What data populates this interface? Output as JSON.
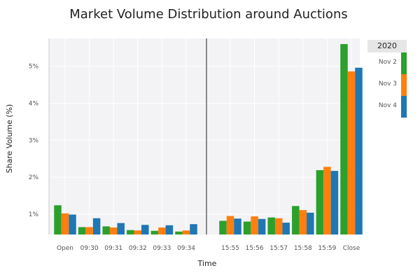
{
  "chart_data": {
    "type": "bar",
    "title": "Market Volume Distribution around Auctions",
    "xlabel": "Time",
    "ylabel": "Share Volume (%)",
    "categories": [
      "Open",
      "09:30",
      "09:31",
      "09:32",
      "09:33",
      "09:34",
      "15:55",
      "15:56",
      "15:57",
      "15:58",
      "15:59",
      "Close"
    ],
    "break_after_index": 5,
    "yticks": [
      "1%",
      "2%",
      "3%",
      "4%",
      "5%"
    ],
    "ylim": [
      0.45,
      5.75
    ],
    "grid": true,
    "legend_placement": "right",
    "legend_title": "2020",
    "series": [
      {
        "name": "Nov 2",
        "color": "#2ca02c",
        "values": [
          1.24,
          0.65,
          0.67,
          0.57,
          0.55,
          0.53,
          0.82,
          0.8,
          0.91,
          1.22,
          2.19,
          5.6
        ]
      },
      {
        "name": "Nov 3",
        "color": "#ff7f0e",
        "values": [
          1.02,
          0.65,
          0.64,
          0.56,
          0.64,
          0.56,
          0.95,
          0.94,
          0.89,
          1.11,
          2.28,
          4.86
        ]
      },
      {
        "name": "Nov 4",
        "color": "#1f77b4",
        "values": [
          0.99,
          0.89,
          0.76,
          0.71,
          0.7,
          0.73,
          0.88,
          0.87,
          0.77,
          1.04,
          2.17,
          4.96
        ]
      }
    ]
  }
}
